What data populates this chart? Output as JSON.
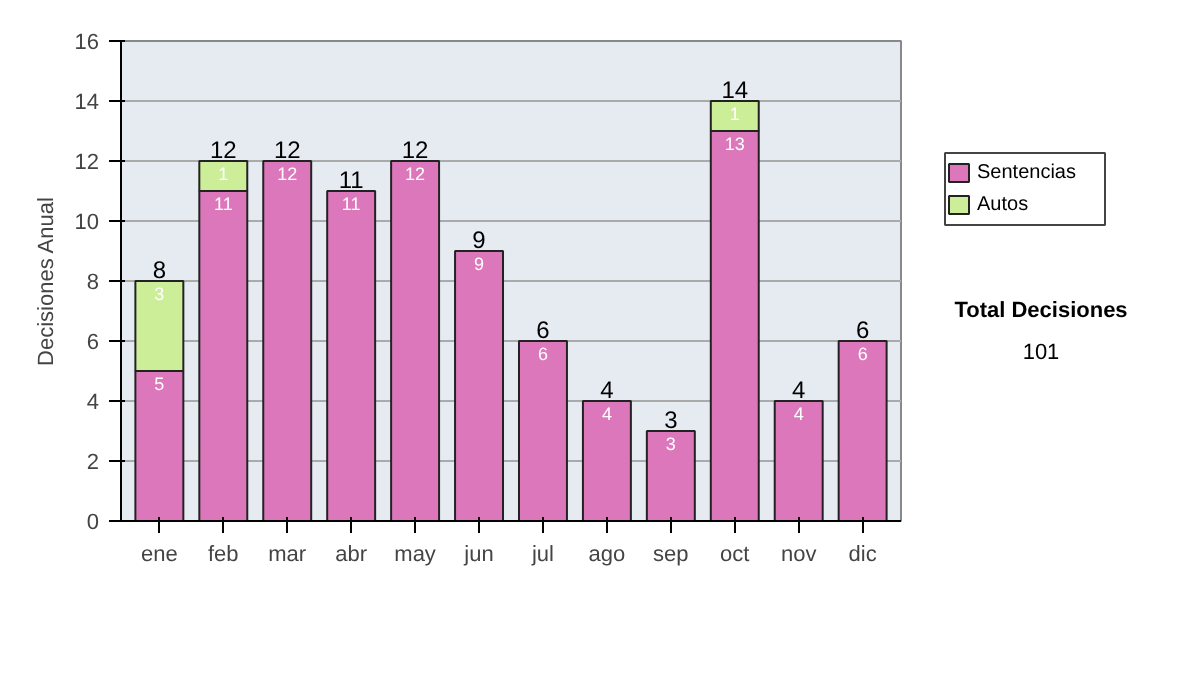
{
  "chart_data": {
    "type": "bar",
    "stacked": true,
    "ylabel": "Decisiones Anual",
    "categories": [
      "ene",
      "feb",
      "mar",
      "abr",
      "may",
      "jun",
      "jul",
      "ago",
      "sep",
      "oct",
      "nov",
      "dic"
    ],
    "series": [
      {
        "name": "Sentencias",
        "color": "#dd77bb",
        "values": [
          5,
          11,
          12,
          11,
          12,
          9,
          6,
          4,
          3,
          13,
          4,
          6
        ],
        "value_labels": [
          "5",
          "11",
          "12",
          "11",
          "12",
          "9",
          "6",
          "4",
          "3",
          "13",
          "4",
          "6"
        ]
      },
      {
        "name": "Autos",
        "color": "#ccee99",
        "values": [
          3,
          1,
          0,
          0,
          0,
          0,
          0,
          0,
          0,
          1,
          0,
          0
        ],
        "value_labels": [
          "3",
          "1",
          null,
          null,
          null,
          null,
          null,
          null,
          null,
          "1",
          null,
          null
        ]
      }
    ],
    "totals": [
      "8",
      "12",
      "12",
      "11",
      "12",
      "9",
      "6",
      "4",
      "3",
      "14",
      "4",
      "6"
    ],
    "ylim": [
      0,
      16
    ],
    "yticks": [
      0,
      2,
      4,
      6,
      8,
      10,
      12,
      14,
      16
    ],
    "grid": "y",
    "legend": "right",
    "annotations": [
      "Total Decisiones",
      "101"
    ]
  }
}
